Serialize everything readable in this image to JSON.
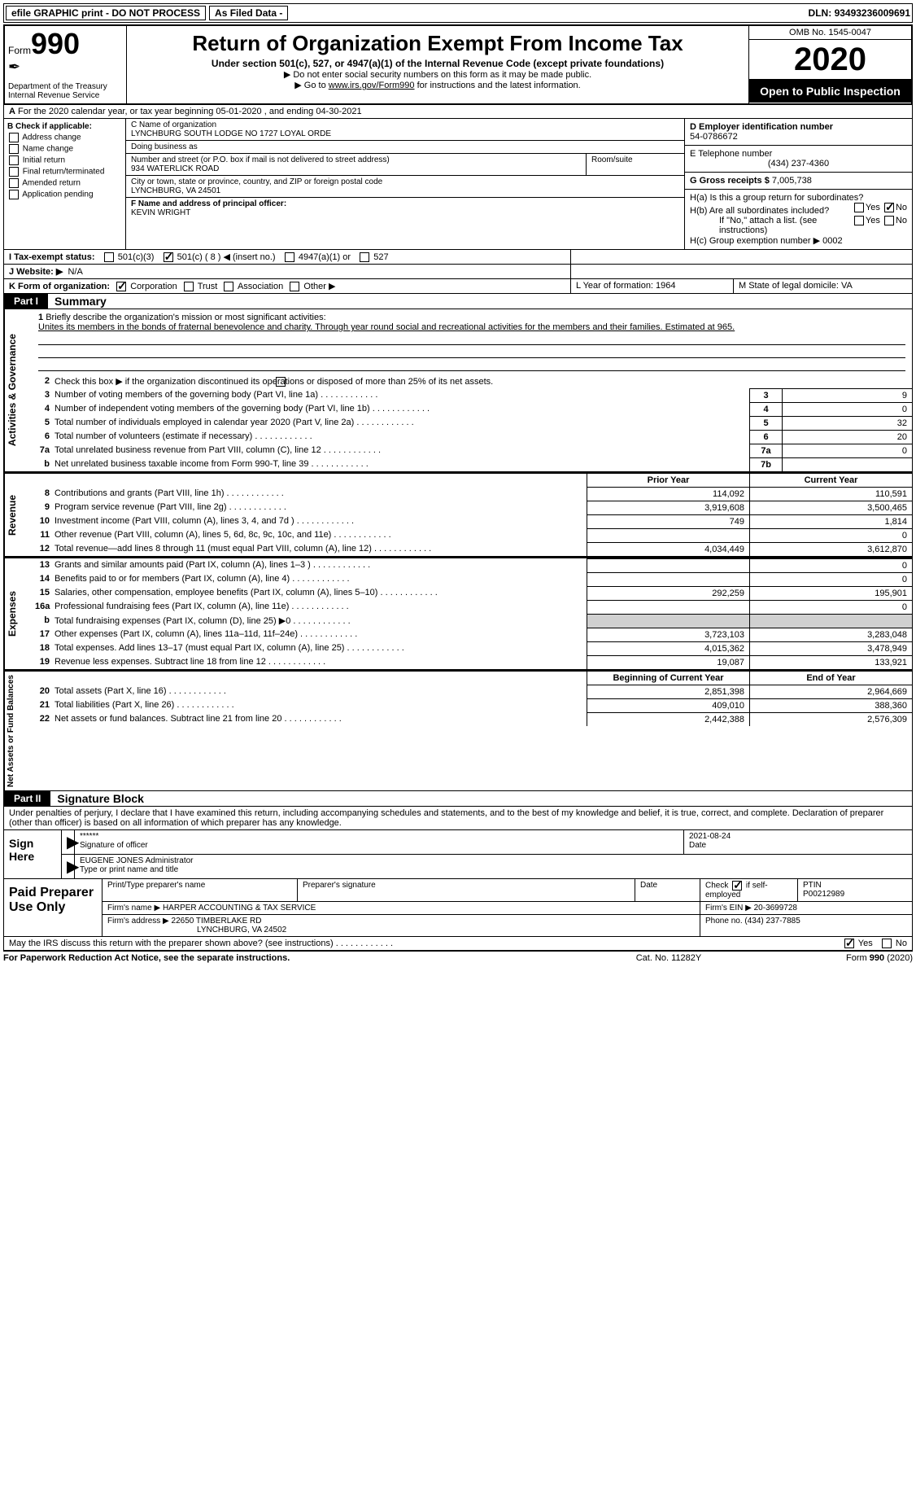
{
  "topbar": {
    "efile": "efile GRAPHIC print - DO NOT PROCESS",
    "asfiled": "As Filed Data -",
    "dln_label": "DLN:",
    "dln": "93493236009691"
  },
  "header": {
    "form_word": "Form",
    "form_num": "990",
    "dept": "Department of the Treasury\nInternal Revenue Service",
    "title": "Return of Organization Exempt From Income Tax",
    "sub1": "Under section 501(c), 527, or 4947(a)(1) of the Internal Revenue Code (except private foundations)",
    "sub2": "▶ Do not enter social security numbers on this form as it may be made public.",
    "sub3_pre": "▶ Go to ",
    "sub3_link": "www.irs.gov/Form990",
    "sub3_post": " for instructions and the latest information.",
    "omb": "OMB No. 1545-0047",
    "year": "2020",
    "open": "Open to Public Inspection"
  },
  "rowA": {
    "label": "A",
    "text": "For the 2020 calendar year, or tax year beginning 05-01-2020   , and ending 04-30-2021"
  },
  "colB": {
    "label": "B Check if applicable:",
    "items": [
      "Address change",
      "Name change",
      "Initial return",
      "Final return/terminated",
      "Amended return",
      "Application pending"
    ]
  },
  "colC": {
    "name_label": "C Name of organization",
    "name": "LYNCHBURG SOUTH LODGE NO 1727 LOYAL ORDE",
    "dba_label": "Doing business as",
    "dba": "",
    "addr_label": "Number and street (or P.O. box if mail is not delivered to street address)",
    "room_label": "Room/suite",
    "addr": "934 WATERLICK ROAD",
    "city_label": "City or town, state or province, country, and ZIP or foreign postal code",
    "city": "LYNCHBURG, VA  24501",
    "officer_label": "F  Name and address of principal officer:",
    "officer": "KEVIN WRIGHT"
  },
  "colD": {
    "ein_label": "D Employer identification number",
    "ein": "54-0786672",
    "phone_label": "E Telephone number",
    "phone": "(434) 237-4360",
    "gross_label": "G Gross receipts $",
    "gross": "7,005,738"
  },
  "colH": {
    "ha": "H(a)  Is this a group return for subordinates?",
    "hb": "H(b)  Are all subordinates included?",
    "hb2": "If \"No,\" attach a list. (see instructions)",
    "hc": "H(c)  Group exemption number ▶",
    "hc_val": "0002"
  },
  "rowI": {
    "label": "I   Tax-exempt status:",
    "c3": "501(c)(3)",
    "c": "501(c) ( 8 ) ◀ (insert no.)",
    "a1": "4947(a)(1) or",
    "s527": "527"
  },
  "rowJ": {
    "label": "J   Website: ▶",
    "val": "N/A"
  },
  "rowK": {
    "label": "K Form of organization:",
    "opts": [
      "Corporation",
      "Trust",
      "Association",
      "Other ▶"
    ],
    "L": "L Year of formation: 1964",
    "M": "M State of legal domicile: VA"
  },
  "part1": {
    "label": "Part I",
    "title": "Summary"
  },
  "mission": {
    "num": "1",
    "label": "Briefly describe the organization's mission or most significant activities:",
    "text": "Unites its members in the bonds of fraternal benevolence and charity. Through year round social and recreational activities for the members and their families. Estimated at 965."
  },
  "gov": {
    "l2": "Check this box ▶        if the organization discontinued its operations or disposed of more than 25% of its net assets.",
    "lines": [
      {
        "n": "3",
        "d": "Number of voting members of the governing body (Part VI, line 1a)",
        "b": "3",
        "v": "9"
      },
      {
        "n": "4",
        "d": "Number of independent voting members of the governing body (Part VI, line 1b)",
        "b": "4",
        "v": "0"
      },
      {
        "n": "5",
        "d": "Total number of individuals employed in calendar year 2020 (Part V, line 2a)",
        "b": "5",
        "v": "32"
      },
      {
        "n": "6",
        "d": "Total number of volunteers (estimate if necessary)",
        "b": "6",
        "v": "20"
      },
      {
        "n": "7a",
        "d": "Total unrelated business revenue from Part VIII, column (C), line 12",
        "b": "7a",
        "v": "0"
      },
      {
        "n": "b",
        "d": "Net unrelated business taxable income from Form 990-T, line 39",
        "b": "7b",
        "v": ""
      }
    ]
  },
  "fin_headers": {
    "prior": "Prior Year",
    "current": "Current Year"
  },
  "revenue": [
    {
      "n": "8",
      "d": "Contributions and grants (Part VIII, line 1h)",
      "p": "114,092",
      "c": "110,591"
    },
    {
      "n": "9",
      "d": "Program service revenue (Part VIII, line 2g)",
      "p": "3,919,608",
      "c": "3,500,465"
    },
    {
      "n": "10",
      "d": "Investment income (Part VIII, column (A), lines 3, 4, and 7d )",
      "p": "749",
      "c": "1,814"
    },
    {
      "n": "11",
      "d": "Other revenue (Part VIII, column (A), lines 5, 6d, 8c, 9c, 10c, and 11e)",
      "p": "",
      "c": "0"
    },
    {
      "n": "12",
      "d": "Total revenue—add lines 8 through 11 (must equal Part VIII, column (A), line 12)",
      "p": "4,034,449",
      "c": "3,612,870"
    }
  ],
  "expenses": [
    {
      "n": "13",
      "d": "Grants and similar amounts paid (Part IX, column (A), lines 1–3 )",
      "p": "",
      "c": "0"
    },
    {
      "n": "14",
      "d": "Benefits paid to or for members (Part IX, column (A), line 4)",
      "p": "",
      "c": "0"
    },
    {
      "n": "15",
      "d": "Salaries, other compensation, employee benefits (Part IX, column (A), lines 5–10)",
      "p": "292,259",
      "c": "195,901"
    },
    {
      "n": "16a",
      "d": "Professional fundraising fees (Part IX, column (A), line 11e)",
      "p": "",
      "c": "0"
    },
    {
      "n": "b",
      "d": "Total fundraising expenses (Part IX, column (D), line 25) ▶0",
      "p": "shade",
      "c": "shade"
    },
    {
      "n": "17",
      "d": "Other expenses (Part IX, column (A), lines 11a–11d, 11f–24e)",
      "p": "3,723,103",
      "c": "3,283,048"
    },
    {
      "n": "18",
      "d": "Total expenses. Add lines 13–17 (must equal Part IX, column (A), line 25)",
      "p": "4,015,362",
      "c": "3,478,949"
    },
    {
      "n": "19",
      "d": "Revenue less expenses. Subtract line 18 from line 12",
      "p": "19,087",
      "c": "133,921"
    }
  ],
  "net_headers": {
    "begin": "Beginning of Current Year",
    "end": "End of Year"
  },
  "net": [
    {
      "n": "20",
      "d": "Total assets (Part X, line 16)",
      "p": "2,851,398",
      "c": "2,964,669"
    },
    {
      "n": "21",
      "d": "Total liabilities (Part X, line 26)",
      "p": "409,010",
      "c": "388,360"
    },
    {
      "n": "22",
      "d": "Net assets or fund balances. Subtract line 21 from line 20",
      "p": "2,442,388",
      "c": "2,576,309"
    }
  ],
  "part2": {
    "label": "Part II",
    "title": "Signature Block"
  },
  "sig": {
    "text": "Under penalties of perjury, I declare that I have examined this return, including accompanying schedules and statements, and to the best of my knowledge and belief, it is true, correct, and complete. Declaration of preparer (other than officer) is based on all information of which preparer has any knowledge.",
    "signhere": "Sign Here",
    "stars": "******",
    "siglabel": "Signature of officer",
    "date": "2021-08-24",
    "datelabel": "Date",
    "name": "EUGENE JONES Administrator",
    "namelabel": "Type or print name and title"
  },
  "prep": {
    "label": "Paid Preparer Use Only",
    "h1": "Print/Type preparer's name",
    "h2": "Preparer's signature",
    "h3": "Date",
    "h4a": "Check",
    "h4b": "if self-employed",
    "h5": "PTIN",
    "ptin": "P00212989",
    "firm_label": "Firm's name    ▶",
    "firm": "HARPER ACCOUNTING & TAX SERVICE",
    "ein_label": "Firm's EIN ▶",
    "ein": "20-3699728",
    "addr_label": "Firm's address ▶",
    "addr1": "22650 TIMBERLAKE RD",
    "addr2": "LYNCHBURG, VA  24502",
    "phone_label": "Phone no.",
    "phone": "(434) 237-7885",
    "discuss": "May the IRS discuss this return with the preparer shown above? (see instructions)"
  },
  "footer": {
    "left": "For Paperwork Reduction Act Notice, see the separate instructions.",
    "mid": "Cat. No. 11282Y",
    "right": "Form 990 (2020)"
  },
  "vlabels": {
    "gov": "Activities & Governance",
    "rev": "Revenue",
    "exp": "Expenses",
    "net": "Net Assets or Fund Balances"
  }
}
